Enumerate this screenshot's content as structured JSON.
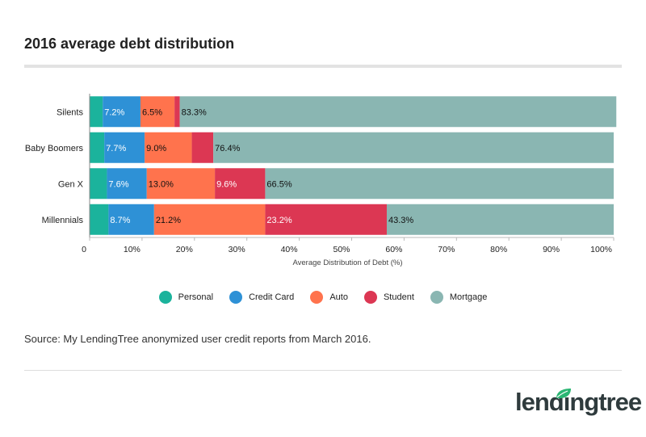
{
  "title": "2016 average debt distribution",
  "source": "Source: My LendingTree anonymized user credit reports from March 2016.",
  "logo": "lendingtree",
  "colors": {
    "Personal": "#1bb39c",
    "Credit Card": "#2e91d6",
    "Auto": "#ff734d",
    "Student": "#dc3753",
    "Mortgage": "#8ab6b2"
  },
  "chart_data": {
    "type": "bar",
    "orientation": "horizontal",
    "stacked": true,
    "categories": [
      "Silents",
      "Baby Boomers",
      "Gen X",
      "Millennials"
    ],
    "series": [
      {
        "name": "Personal",
        "values": [
          2.5,
          2.8,
          3.3,
          3.6
        ],
        "labels": [
          "",
          "",
          "",
          ""
        ]
      },
      {
        "name": "Credit Card",
        "values": [
          7.2,
          7.7,
          7.6,
          8.7
        ],
        "labels": [
          "7.2%",
          "7.7%",
          "7.6%",
          "8.7%"
        ]
      },
      {
        "name": "Auto",
        "values": [
          6.5,
          9.0,
          13.0,
          21.2
        ],
        "labels": [
          "6.5%",
          "9.0%",
          "13.0%",
          "21.2%"
        ]
      },
      {
        "name": "Student",
        "values": [
          1.0,
          4.1,
          9.6,
          23.2
        ],
        "labels": [
          "",
          "",
          "9.6%",
          "23.2%"
        ]
      },
      {
        "name": "Mortgage",
        "values": [
          83.3,
          76.4,
          66.5,
          43.3
        ],
        "labels": [
          "83.3%",
          "76.4%",
          "66.5%",
          "43.3%"
        ]
      }
    ],
    "xlabel": "Average Distribution of Debt (%)",
    "ylabel": "",
    "xlim": [
      0,
      100
    ],
    "xticks": [
      "0",
      "10%",
      "20%",
      "30%",
      "40%",
      "50%",
      "60%",
      "70%",
      "80%",
      "90%",
      "100%"
    ],
    "grid": false,
    "legend": "bottom"
  }
}
